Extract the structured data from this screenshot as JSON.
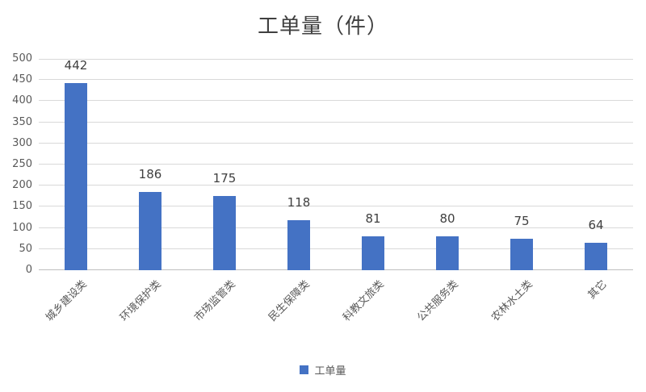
{
  "chart_data": {
    "type": "bar",
    "title": "工单量（件）",
    "series_name": "工单量",
    "categories": [
      "城乡建设类",
      "环境保护类",
      "市场监管类",
      "民生保障类",
      "科教文旅类",
      "公共服务类",
      "农林水土类",
      "其它"
    ],
    "values": [
      442,
      186,
      175,
      118,
      81,
      80,
      75,
      64
    ],
    "ylim": [
      0,
      500
    ],
    "ytick_interval": 50,
    "yticks_top_down": [
      500,
      450,
      400,
      350,
      300,
      250,
      200,
      150,
      100,
      50,
      0
    ],
    "grid": true,
    "legend_position": "bottom",
    "colors": {
      "bar": "#4472C4",
      "gridline": "#D9D9D9",
      "axis_line": "#BFBFBF",
      "tick_label": "#595959",
      "value_label": "#404040",
      "title": "#404040"
    }
  },
  "legend": {
    "label": "工单量"
  }
}
